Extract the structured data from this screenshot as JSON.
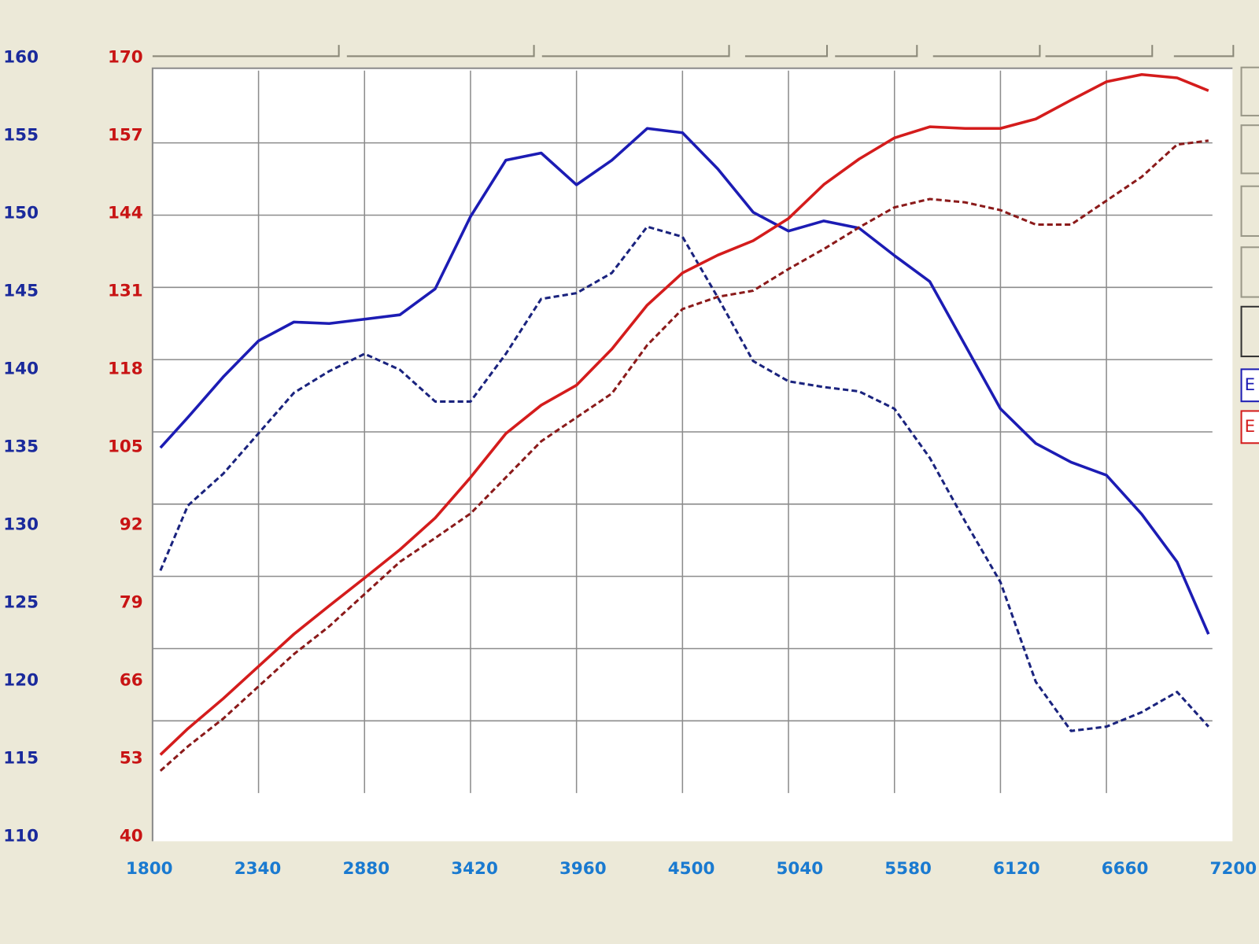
{
  "chart_data": {
    "type": "line",
    "x": [
      1840,
      1980,
      2160,
      2340,
      2520,
      2700,
      2880,
      3060,
      3240,
      3420,
      3600,
      3780,
      3960,
      4140,
      4320,
      4500,
      4680,
      4860,
      5040,
      5220,
      5400,
      5580,
      5760,
      5940,
      6120,
      6300,
      6480,
      6660,
      6840,
      7020,
      7180
    ],
    "xlim": [
      1800,
      7200
    ],
    "xticks": [
      1800,
      2340,
      2880,
      3420,
      3960,
      4500,
      5040,
      5580,
      6120,
      6660,
      7200
    ],
    "ylim": [
      110,
      160
    ],
    "yticks": [
      110,
      115,
      120,
      125,
      130,
      135,
      140,
      145,
      150,
      155,
      160
    ],
    "y2lim": [
      40,
      170
    ],
    "y2ticks": [
      40,
      53,
      66,
      79,
      92,
      105,
      118,
      131,
      144,
      157,
      170
    ],
    "grid": true,
    "series": [
      {
        "name": "E",
        "color": "#1c1cb4",
        "dashed": false,
        "values": [
          133.9,
          136,
          138.8,
          141.3,
          142.6,
          142.5,
          142.8,
          143.1,
          144.9,
          149.9,
          153.8,
          154.3,
          152.1,
          153.8,
          156,
          155.7,
          153.2,
          150.2,
          148.9,
          149.6,
          149.1,
          147.2,
          145.4,
          141,
          136.6,
          134.2,
          132.9,
          132,
          129.3,
          126,
          121
        ]
      },
      {
        "color": "#1a237e",
        "dashed": true,
        "values": [
          125.4,
          129.9,
          132.1,
          134.9,
          137.7,
          139.2,
          140.4,
          139.3,
          137.1,
          137.1,
          140.4,
          144.2,
          144.6,
          146,
          149.2,
          148.5,
          144.3,
          139.9,
          138.5,
          138.1,
          137.8,
          136.6,
          133.2,
          128.8,
          124.6,
          117.7,
          114.3,
          114.6,
          115.6,
          117,
          114.6
        ]
      },
      {
        "name": "E",
        "color": "#d41c1c",
        "dashed": false,
        "axis": "y2",
        "values": [
          46.9,
          51.6,
          57,
          62.8,
          68.6,
          73.7,
          78.7,
          83.8,
          89.5,
          96.8,
          104.7,
          109.8,
          113.4,
          119.9,
          127.8,
          133.6,
          136.8,
          139.4,
          143.4,
          149.5,
          154.1,
          157.9,
          159.9,
          159.6,
          159.6,
          161.3,
          164.7,
          168,
          169.3,
          168.7,
          166.4
        ]
      },
      {
        "color": "#8b1a1a",
        "dashed": true,
        "axis": "y2",
        "values": [
          44,
          48.4,
          53.4,
          59.2,
          65,
          70,
          75.8,
          81.6,
          85.9,
          90.3,
          96.8,
          103.3,
          107.6,
          111.9,
          120.6,
          127.1,
          129.3,
          130.4,
          134.3,
          137.9,
          141.8,
          145.4,
          146.9,
          146.3,
          144.9,
          142.3,
          142.3,
          146.6,
          150.9,
          156.7,
          157.4
        ]
      }
    ],
    "ycolor": "#1a2a9c",
    "y2color": "#c81414",
    "xcolor": "#1a7ad0"
  }
}
